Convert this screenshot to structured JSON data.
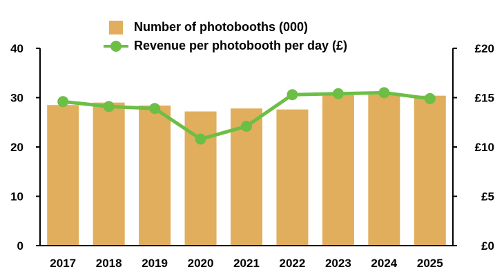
{
  "chart_data": {
    "type": "bar",
    "categories": [
      "2017",
      "2018",
      "2019",
      "2020",
      "2021",
      "2022",
      "2023",
      "2024",
      "2025"
    ],
    "series": [
      {
        "name": "Number of photobooths (000)",
        "type": "bar",
        "axis": "left",
        "values": [
          28.5,
          29.0,
          28.4,
          27.2,
          27.8,
          27.6,
          30.5,
          30.6,
          30.4
        ]
      },
      {
        "name": "Revenue per photobooth per day (£)",
        "type": "line",
        "axis": "right",
        "values": [
          14.6,
          14.1,
          13.9,
          10.8,
          12.1,
          15.3,
          15.4,
          15.5,
          14.9
        ]
      }
    ],
    "y_left": {
      "ylim": [
        0,
        40
      ],
      "ticks": [
        "0",
        "10",
        "20",
        "30",
        "40"
      ]
    },
    "y_right": {
      "ylim": [
        0,
        20
      ],
      "ticks": [
        "£0",
        "£5",
        "£10",
        "£15",
        "£20"
      ]
    },
    "legend_position": "top-center",
    "grid": false
  },
  "colors": {
    "bar": "#E0AE5C",
    "line": "#6DBE45",
    "axis": "#000000"
  }
}
